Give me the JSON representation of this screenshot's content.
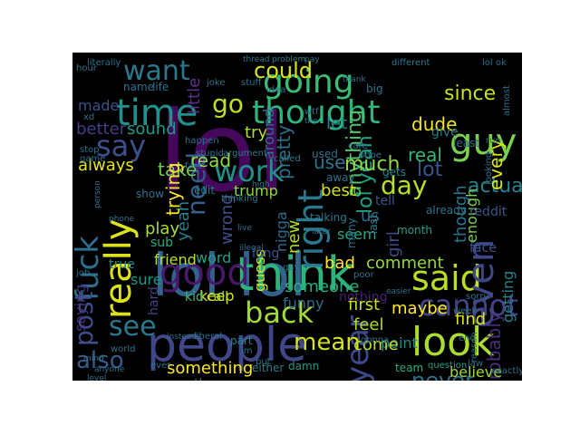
{
  "word_cloud": {
    "background": "#000000",
    "palette": "viridis",
    "words": [
      {
        "text": "lol",
        "color": "#46085c"
      },
      {
        "text": "lol lol",
        "color": "#33638d"
      },
      {
        "text": "people",
        "color": "#3f4788"
      },
      {
        "text": "think",
        "color": "#2eb37c"
      },
      {
        "text": "time",
        "color": "#21908d"
      },
      {
        "text": "going",
        "color": "#3bbb75"
      },
      {
        "text": "thought",
        "color": "#2fb47c"
      },
      {
        "text": "good",
        "color": "#48186a"
      },
      {
        "text": "look",
        "color": "#addc30"
      },
      {
        "text": "said",
        "color": "#bade28"
      },
      {
        "text": "even",
        "color": "#3f4788"
      },
      {
        "text": "want",
        "color": "#2a788e"
      },
      {
        "text": "guy",
        "color": "#7ad151"
      },
      {
        "text": "say",
        "color": "#3c508b"
      },
      {
        "text": "work",
        "color": "#21918c"
      },
      {
        "text": "really",
        "color": "#dde318"
      },
      {
        "text": "fuck",
        "color": "#2d6f8e"
      },
      {
        "text": "right",
        "color": "#29798e"
      },
      {
        "text": "back",
        "color": "#a2da37"
      },
      {
        "text": "cannot",
        "color": "#414487"
      },
      {
        "text": "see",
        "color": "#2a778e"
      },
      {
        "text": "could",
        "color": "#d8e219"
      },
      {
        "text": "go",
        "color": "#c0df25"
      },
      {
        "text": "also",
        "color": "#365c8d"
      },
      {
        "text": "need",
        "color": "#355e8d"
      },
      {
        "text": "day",
        "color": "#b8de29"
      },
      {
        "text": "year",
        "color": "#3e4989"
      },
      {
        "text": "post",
        "color": "#3d4e8a"
      },
      {
        "text": "actually",
        "color": "#25848e"
      },
      {
        "text": "mean",
        "color": "#d2e21b"
      },
      {
        "text": "never",
        "color": "#2c728e"
      },
      {
        "text": "lol yeah",
        "color": "#1fa187"
      },
      {
        "text": "anything",
        "color": "#50c46a"
      },
      {
        "text": "probably",
        "color": "#472d7b"
      },
      {
        "text": "something",
        "color": "#fde725"
      },
      {
        "text": "made",
        "color": "#3b528b"
      },
      {
        "text": "since",
        "color": "#c8e020"
      },
      {
        "text": "pretty",
        "color": "#2c718e"
      },
      {
        "text": "lot",
        "color": "#39568c"
      },
      {
        "text": "much",
        "color": "#8fd744"
      },
      {
        "text": "dude",
        "color": "#f1e51d"
      },
      {
        "text": "better",
        "color": "#433e85"
      },
      {
        "text": "let",
        "color": "#24868e"
      },
      {
        "text": "use",
        "color": "#2a768e"
      },
      {
        "text": "try",
        "color": "#b5de2b"
      },
      {
        "text": "take",
        "color": "#6ece58"
      },
      {
        "text": "read",
        "color": "#90d743"
      },
      {
        "text": "little",
        "color": "#5d2f8f"
      },
      {
        "text": "best",
        "color": "#d0e11c"
      },
      {
        "text": "always",
        "color": "#e5e419"
      },
      {
        "text": "sound",
        "color": "#1f998a"
      },
      {
        "text": "trump",
        "color": "#8fd744"
      },
      {
        "text": "around",
        "color": "#2d718e"
      },
      {
        "text": "real",
        "color": "#35b779"
      },
      {
        "text": "every",
        "color": "#dde318"
      },
      {
        "text": "though",
        "color": "#2c728e"
      },
      {
        "text": "enough",
        "color": "#7ad151"
      },
      {
        "text": "us",
        "color": "#2e6e8e"
      },
      {
        "text": "yeah",
        "color": "#277f8e"
      },
      {
        "text": "trying",
        "color": "#fde725"
      },
      {
        "text": "play",
        "color": "#addc30"
      },
      {
        "text": "wrong",
        "color": "#3e4c8a"
      },
      {
        "text": "nigga",
        "color": "#31688e"
      },
      {
        "text": "new",
        "color": "#b5de2b"
      },
      {
        "text": "girl",
        "color": "#3d4d8a"
      },
      {
        "text": "friend",
        "color": "#b8de29"
      },
      {
        "text": "word",
        "color": "#1f9f88"
      },
      {
        "text": "saying",
        "color": "#46327e"
      },
      {
        "text": "seem",
        "color": "#22a785"
      },
      {
        "text": "bad",
        "color": "#fde725"
      },
      {
        "text": "comment",
        "color": "#95d840"
      },
      {
        "text": "keep",
        "color": "#dae319"
      },
      {
        "text": "funny",
        "color": "#2e6e8e"
      },
      {
        "text": "someone",
        "color": "#26ad81"
      },
      {
        "text": "first",
        "color": "#c8e020"
      },
      {
        "text": "maybe",
        "color": "#fde725"
      },
      {
        "text": "getting",
        "color": "#25848e"
      },
      {
        "text": "feel",
        "color": "#addc30"
      },
      {
        "text": "find",
        "color": "#dde318"
      },
      {
        "text": "point",
        "color": "#25848e"
      },
      {
        "text": "come",
        "color": "#bade28"
      },
      {
        "text": "nothing",
        "color": "#482173"
      },
      {
        "text": "sure",
        "color": "#1f958b"
      },
      {
        "text": "guess",
        "color": "#d8e219"
      },
      {
        "text": "another",
        "color": "#31688e"
      },
      {
        "text": "believe",
        "color": "#9bd93c"
      },
      {
        "text": "hard",
        "color": "#414487"
      },
      {
        "text": "long",
        "color": "#3b528b"
      },
      {
        "text": "kid",
        "color": "#3bbb75"
      },
      {
        "text": "call",
        "color": "#b5de2b"
      },
      {
        "text": "sub",
        "color": "#26ad81"
      },
      {
        "text": "true",
        "color": "#23888e"
      },
      {
        "text": "show",
        "color": "#2c728e"
      },
      {
        "text": "tell",
        "color": "#39568c"
      },
      {
        "text": "reddit",
        "color": "#39568c"
      },
      {
        "text": "face",
        "color": "#39568c"
      },
      {
        "text": "edit",
        "color": "#287c8e"
      },
      {
        "text": "give",
        "color": "#2a788e"
      },
      {
        "text": "least",
        "color": "#2e6e8e"
      },
      {
        "text": "talking",
        "color": "#2a788e"
      },
      {
        "text": "last",
        "color": "#26828e"
      },
      {
        "text": "month",
        "color": "#1f9e89"
      },
      {
        "text": "gets",
        "color": "#24868e"
      },
      {
        "text": "damn",
        "color": "#1f998a"
      },
      {
        "text": "either",
        "color": "#26828e"
      },
      {
        "text": "part",
        "color": "#26828e"
      },
      {
        "text": "team",
        "color": "#2ab07f"
      },
      {
        "text": "question",
        "color": "#20a386"
      },
      {
        "text": "exactly",
        "color": "#2d708e"
      },
      {
        "text": "literally",
        "color": "#2c728e"
      },
      {
        "text": "thread",
        "color": "#2a788e"
      },
      {
        "text": "problem",
        "color": "#26828e"
      },
      {
        "text": "different",
        "color": "#287c8e"
      },
      {
        "text": "lol ok",
        "color": "#2d708e"
      },
      {
        "text": "joke",
        "color": "#2c728e"
      },
      {
        "text": "stupid",
        "color": "#2c728e"
      },
      {
        "text": "argument",
        "color": "#287c8e"
      },
      {
        "text": "called",
        "color": "#287c8e"
      },
      {
        "text": "thinking",
        "color": "#287c8e"
      },
      {
        "text": "idea",
        "color": "#2c728e"
      },
      {
        "text": "stuff",
        "color": "#2c728e"
      },
      {
        "text": "name",
        "color": "#2c728e"
      },
      {
        "text": "life",
        "color": "#2c728e"
      },
      {
        "text": "hour",
        "color": "#2c728e"
      },
      {
        "text": "big",
        "color": "#2c728e"
      },
      {
        "text": "almost",
        "color": "#2c728e"
      },
      {
        "text": "gonna",
        "color": "#2c728e"
      },
      {
        "text": "anyone",
        "color": "#2c728e"
      },
      {
        "text": "world",
        "color": "#2c728e"
      },
      {
        "text": "instead",
        "color": "#2c728e"
      },
      {
        "text": "liberal",
        "color": "#2c728e"
      },
      {
        "text": "im",
        "color": "#2c728e"
      },
      {
        "text": "put",
        "color": "#2c728e"
      },
      {
        "text": "end",
        "color": "#2c728e"
      },
      {
        "text": "law",
        "color": "#2c728e"
      },
      {
        "text": "sorry",
        "color": "#2c728e"
      },
      {
        "text": "week",
        "color": "#2c728e"
      },
      {
        "text": "xd",
        "color": "#2c728e"
      },
      {
        "text": "happen",
        "color": "#2c728e"
      },
      {
        "text": "fact",
        "color": "#2c728e"
      },
      {
        "text": "used",
        "color": "#2c728e"
      },
      {
        "text": "away",
        "color": "#2c728e"
      },
      {
        "text": "care",
        "color": "#2c728e"
      },
      {
        "text": "hope",
        "color": "#2c728e"
      },
      {
        "text": "stop",
        "color": "#2c728e"
      },
      {
        "text": "game",
        "color": "#2c728e"
      },
      {
        "text": "job",
        "color": "#2c728e"
      },
      {
        "text": "many",
        "color": "#2c728e"
      },
      {
        "text": "already",
        "color": "#2c728e"
      },
      {
        "text": "looking",
        "color": "#2c728e"
      },
      {
        "text": "reason",
        "color": "#2c728e"
      },
      {
        "text": "poor",
        "color": "#2c728e"
      },
      {
        "text": "gay",
        "color": "#2c728e"
      },
      {
        "text": "level",
        "color": "#2c728e"
      },
      {
        "text": "ever",
        "color": "#2c728e"
      },
      {
        "text": "later",
        "color": "#2c728e"
      },
      {
        "text": "run",
        "color": "#2c728e"
      },
      {
        "text": "high",
        "color": "#2c728e"
      },
      {
        "text": "wtf",
        "color": "#2c728e"
      },
      {
        "text": "tho",
        "color": "#2c728e"
      },
      {
        "text": "thank",
        "color": "#2c728e"
      },
      {
        "text": "pay",
        "color": "#2c728e"
      },
      {
        "text": "mind",
        "color": "#2c728e"
      },
      {
        "text": "live",
        "color": "#2c728e"
      },
      {
        "text": "illegal",
        "color": "#2c728e"
      },
      {
        "text": "phone",
        "color": "#2c728e"
      },
      {
        "text": "person",
        "color": "#2c728e"
      },
      {
        "text": "easier",
        "color": "#2c728e"
      }
    ]
  }
}
